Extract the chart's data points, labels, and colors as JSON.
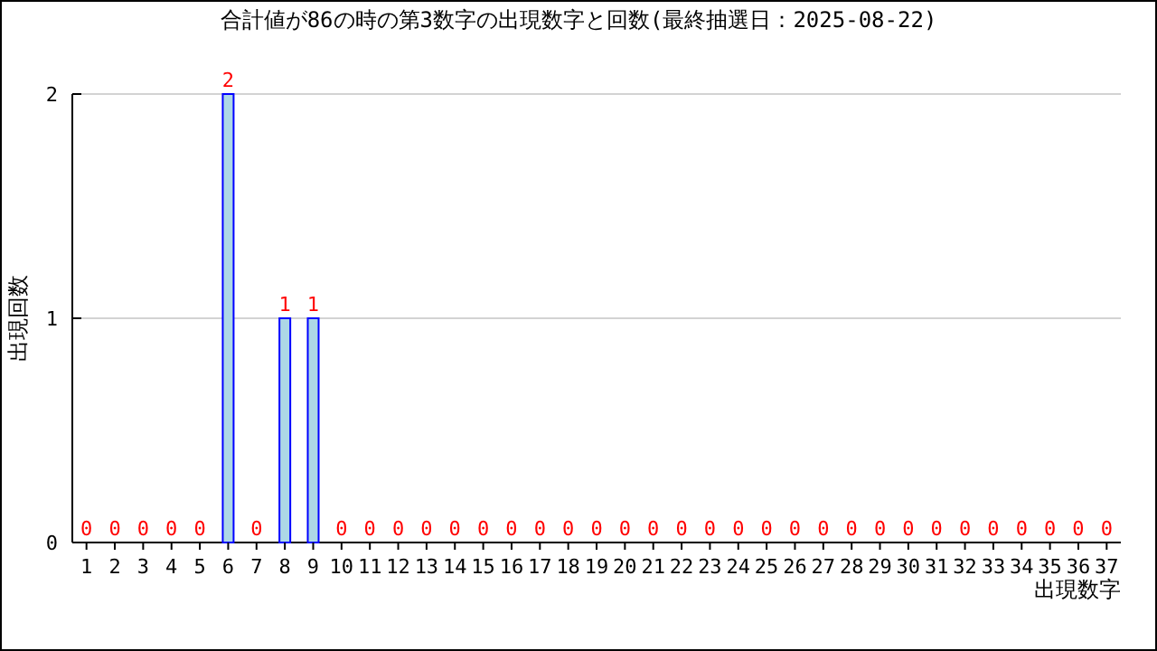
{
  "chart_data": {
    "type": "bar",
    "title": "合計値が86の時の第3数字の出現数字と回数(最終抽選日：2025-08-22)",
    "xlabel": "出現数字",
    "ylabel": "出現回数",
    "categories": [
      "1",
      "2",
      "3",
      "4",
      "5",
      "6",
      "7",
      "8",
      "9",
      "10",
      "11",
      "12",
      "13",
      "14",
      "15",
      "16",
      "17",
      "18",
      "19",
      "20",
      "21",
      "22",
      "23",
      "24",
      "25",
      "26",
      "27",
      "28",
      "29",
      "30",
      "31",
      "32",
      "33",
      "34",
      "35",
      "36",
      "37"
    ],
    "values": [
      0,
      0,
      0,
      0,
      0,
      2,
      0,
      1,
      1,
      0,
      0,
      0,
      0,
      0,
      0,
      0,
      0,
      0,
      0,
      0,
      0,
      0,
      0,
      0,
      0,
      0,
      0,
      0,
      0,
      0,
      0,
      0,
      0,
      0,
      0,
      0,
      0
    ],
    "color": "#add8e6",
    "ylim": [
      0,
      2
    ],
    "yticks": [
      0,
      1,
      2
    ],
    "grid": "y",
    "data_labels": true
  }
}
